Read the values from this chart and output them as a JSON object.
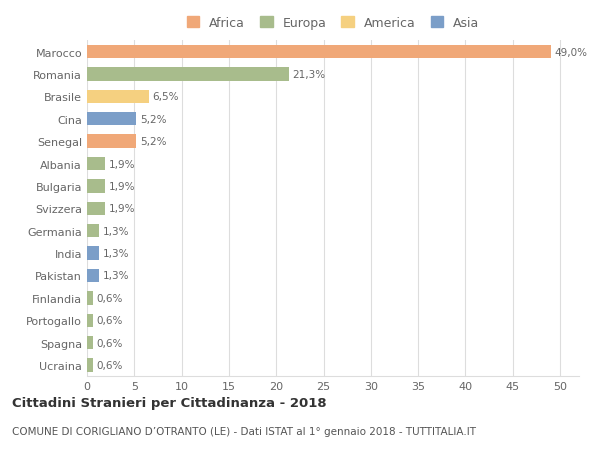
{
  "countries": [
    "Marocco",
    "Romania",
    "Brasile",
    "Cina",
    "Senegal",
    "Albania",
    "Bulgaria",
    "Svizzera",
    "Germania",
    "India",
    "Pakistan",
    "Finlandia",
    "Portogallo",
    "Spagna",
    "Ucraina"
  ],
  "values": [
    49.0,
    21.3,
    6.5,
    5.2,
    5.2,
    1.9,
    1.9,
    1.9,
    1.3,
    1.3,
    1.3,
    0.6,
    0.6,
    0.6,
    0.6
  ],
  "labels": [
    "49,0%",
    "21,3%",
    "6,5%",
    "5,2%",
    "5,2%",
    "1,9%",
    "1,9%",
    "1,9%",
    "1,3%",
    "1,3%",
    "1,3%",
    "0,6%",
    "0,6%",
    "0,6%",
    "0,6%"
  ],
  "colors": [
    "#F0A878",
    "#A8BC8C",
    "#F5D080",
    "#7B9EC8",
    "#F0A878",
    "#A8BC8C",
    "#A8BC8C",
    "#A8BC8C",
    "#A8BC8C",
    "#7B9EC8",
    "#7B9EC8",
    "#A8BC8C",
    "#A8BC8C",
    "#A8BC8C",
    "#A8BC8C"
  ],
  "continent_labels": [
    "Africa",
    "Europa",
    "America",
    "Asia"
  ],
  "continent_colors": [
    "#F0A878",
    "#A8BC8C",
    "#F5D080",
    "#7B9EC8"
  ],
  "title": "Cittadini Stranieri per Cittadinanza - 2018",
  "subtitle": "COMUNE DI CORIGLIANO D’OTRANTO (LE) - Dati ISTAT al 1° gennaio 2018 - TUTTITALIA.IT",
  "xlim": [
    0,
    52
  ],
  "xticks": [
    0,
    5,
    10,
    15,
    20,
    25,
    30,
    35,
    40,
    45,
    50
  ],
  "background_color": "#ffffff",
  "grid_color": "#dddddd"
}
